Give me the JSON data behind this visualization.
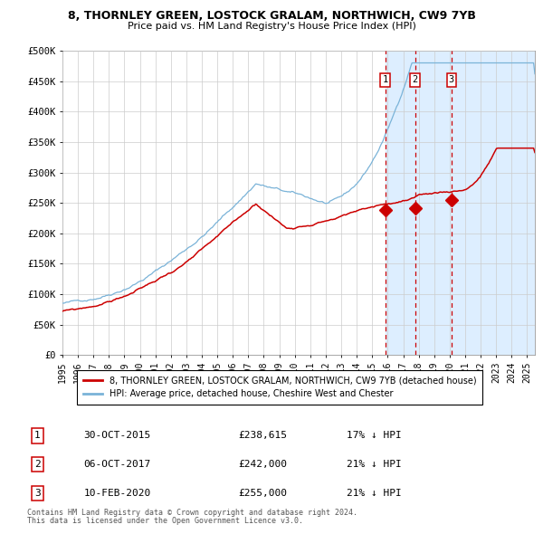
{
  "title1": "8, THORNLEY GREEN, LOSTOCK GRALAM, NORTHWICH, CW9 7YB",
  "title2": "Price paid vs. HM Land Registry's House Price Index (HPI)",
  "ylabel_ticks": [
    "£0",
    "£50K",
    "£100K",
    "£150K",
    "£200K",
    "£250K",
    "£300K",
    "£350K",
    "£400K",
    "£450K",
    "£500K"
  ],
  "ytick_values": [
    0,
    50000,
    100000,
    150000,
    200000,
    250000,
    300000,
    350000,
    400000,
    450000,
    500000
  ],
  "ylim": [
    0,
    500000
  ],
  "xlim_start": 1995.0,
  "xlim_end": 2025.5,
  "hpi_color": "#7ab3d8",
  "price_color": "#cc0000",
  "transactions": [
    {
      "label": "1",
      "date_decimal": 2015.83,
      "price": 238615
    },
    {
      "label": "2",
      "date_decimal": 2017.77,
      "price": 242000
    },
    {
      "label": "3",
      "date_decimal": 2020.12,
      "price": 255000
    }
  ],
  "legend_property_label": "8, THORNLEY GREEN, LOSTOCK GRALAM, NORTHWICH, CW9 7YB (detached house)",
  "legend_hpi_label": "HPI: Average price, detached house, Cheshire West and Chester",
  "table_rows": [
    {
      "num": "1",
      "date": "30-OCT-2015",
      "price": "£238,615",
      "pct": "17% ↓ HPI"
    },
    {
      "num": "2",
      "date": "06-OCT-2017",
      "price": "£242,000",
      "pct": "21% ↓ HPI"
    },
    {
      "num": "3",
      "date": "10-FEB-2020",
      "price": "£255,000",
      "pct": "21% ↓ HPI"
    }
  ],
  "footnote1": "Contains HM Land Registry data © Crown copyright and database right 2024.",
  "footnote2": "This data is licensed under the Open Government Licence v3.0.",
  "background_color": "#ffffff",
  "plot_bg_color": "#ffffff",
  "shaded_region_color": "#ddeeff",
  "grid_color": "#cccccc",
  "xticks": [
    1995,
    1996,
    1997,
    1998,
    1999,
    2000,
    2001,
    2002,
    2003,
    2004,
    2005,
    2006,
    2007,
    2008,
    2009,
    2010,
    2011,
    2012,
    2013,
    2014,
    2015,
    2016,
    2017,
    2018,
    2019,
    2020,
    2021,
    2022,
    2023,
    2024,
    2025
  ],
  "hpi_seed": 42,
  "red_seed": 99
}
